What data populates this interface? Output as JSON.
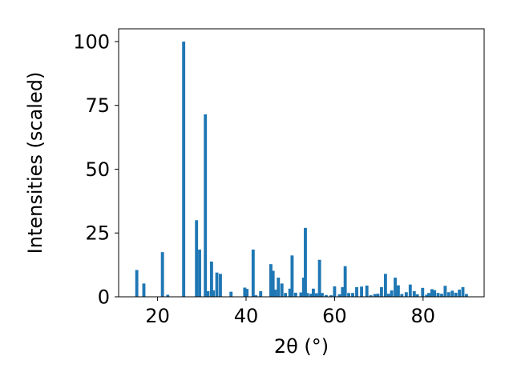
{
  "chart_data": {
    "type": "bar",
    "title": "",
    "xlabel": "2θ (°)",
    "ylabel": "Intensities (scaled)",
    "xlim": [
      11.2,
      93.8
    ],
    "ylim": [
      0,
      105
    ],
    "xticks": [
      20,
      40,
      60,
      80
    ],
    "yticks": [
      0,
      25,
      50,
      75,
      100
    ],
    "grid": false,
    "bar_color": "#1f77b4",
    "bar_width": 0.7,
    "x": [
      15.3,
      16.9,
      21.1,
      22.3,
      25.9,
      28.8,
      29.5,
      30.8,
      31.4,
      32.2,
      32.6,
      33.4,
      34.2,
      36.6,
      39.7,
      40.2,
      41.6,
      42.2,
      43.3,
      45.6,
      46.1,
      46.6,
      47.3,
      48.1,
      48.9,
      49.9,
      50.4,
      51.2,
      52.4,
      53.0,
      53.4,
      53.8,
      54.6,
      55.2,
      55.9,
      56.6,
      57.2,
      58.1,
      59.2,
      60.0,
      61.1,
      61.8,
      62.4,
      63.2,
      64.1,
      65.0,
      66.1,
      67.3,
      68.2,
      69.1,
      69.8,
      70.6,
      71.5,
      72.2,
      72.9,
      73.7,
      74.4,
      75.2,
      76.2,
      77.1,
      78.0,
      78.7,
      79.9,
      80.8,
      81.3,
      82.0,
      82.6,
      83.4,
      84.2,
      85.0,
      85.8,
      86.6,
      87.4,
      88.2,
      89.0,
      89.8
    ],
    "values": [
      10.5,
      5.2,
      17.5,
      0.8,
      100,
      30,
      18.5,
      71.5,
      2.2,
      13.8,
      2.5,
      9.5,
      9,
      2,
      3.6,
      3.1,
      18.5,
      0.6,
      2.2,
      12.8,
      10.2,
      2.8,
      7.5,
      5.2,
      1.5,
      3.2,
      16.2,
      1.6,
      1.7,
      7.5,
      27,
      1.5,
      1.2,
      3.2,
      1.4,
      14.5,
      1.5,
      0.7,
      0.6,
      4.1,
      1,
      3.8,
      12,
      1.5,
      1.5,
      3.8,
      4,
      4.4,
      0.6,
      1.1,
      1.2,
      3.8,
      9,
      1.2,
      2.5,
      7.5,
      4.5,
      1.1,
      1.8,
      4.8,
      2.2,
      1,
      3.5,
      0.8,
      1.5,
      3,
      2.6,
      1.5,
      1.2,
      4.3,
      1.8,
      2.4,
      1.6,
      2.8,
      3.8,
      1.1
    ]
  }
}
